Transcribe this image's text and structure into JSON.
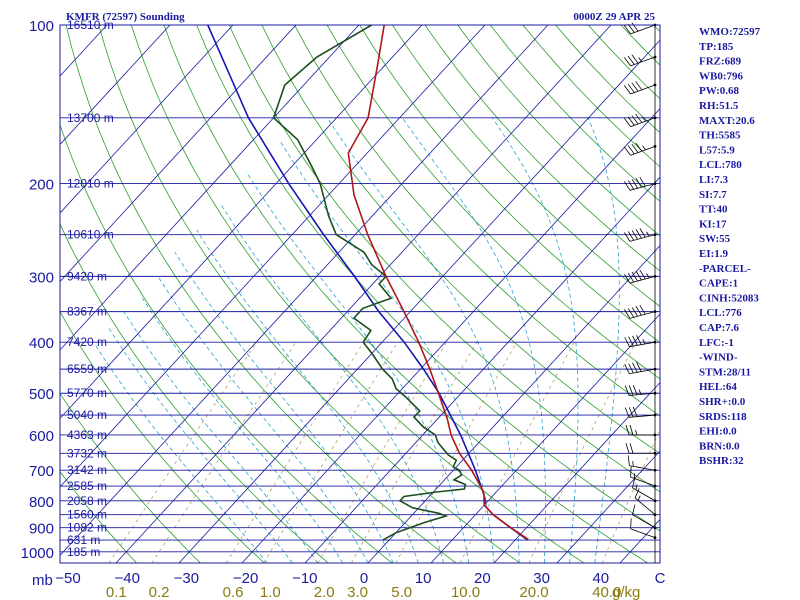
{
  "chart_data": {
    "type": "skew-t",
    "title": "KMFR (72597) Sounding",
    "time": "0000Z 29 APR 25",
    "pressure_axis_label": "mb",
    "pressure_levels": [
      100,
      200,
      300,
      400,
      500,
      600,
      700,
      800,
      900,
      1000
    ],
    "temperature_ticks": [
      "−50",
      "−40",
      "−30",
      "−20",
      "−10",
      "0",
      "10",
      "20",
      "30",
      "40",
      "C"
    ],
    "mixing_ratio_ticks": [
      {
        "r": 0.1,
        "label": "0.1"
      },
      {
        "r": 0.2,
        "label": "0.2"
      },
      {
        "r": 0.6,
        "label": "0.6"
      },
      {
        "r": 1.0,
        "label": "1.0"
      },
      {
        "r": 2.0,
        "label": "2.0"
      },
      {
        "r": 3.0,
        "label": "3.0"
      },
      {
        "r": 5.0,
        "label": "5.0"
      },
      {
        "r": 10.0,
        "label": "10.0"
      },
      {
        "r": 20.0,
        "label": "20.0"
      },
      {
        "r": 40.0,
        "label": "40.0"
      }
    ],
    "mixing_ratio_unit": "g/kg",
    "heights": [
      {
        "p": 100,
        "label": "16510 m"
      },
      {
        "p": 150,
        "label": "13700 m"
      },
      {
        "p": 200,
        "label": "12010 m"
      },
      {
        "p": 250,
        "label": "10610 m"
      },
      {
        "p": 300,
        "label": "9420 m"
      },
      {
        "p": 350,
        "label": "8367 m"
      },
      {
        "p": 400,
        "label": "7420 m"
      },
      {
        "p": 450,
        "label": "6559 m"
      },
      {
        "p": 500,
        "label": "5770 m"
      },
      {
        "p": 550,
        "label": "5040 m"
      },
      {
        "p": 600,
        "label": "4363 m"
      },
      {
        "p": 650,
        "label": "3732 m"
      },
      {
        "p": 700,
        "label": "3142 m"
      },
      {
        "p": 750,
        "label": "2585 m"
      },
      {
        "p": 800,
        "label": "2058 m"
      },
      {
        "p": 850,
        "label": "1560 m"
      },
      {
        "p": 900,
        "label": "1082 m"
      },
      {
        "p": 950,
        "label": "631 m"
      },
      {
        "p": 1000,
        "label": "185 m"
      }
    ],
    "temperature_profile": [
      {
        "p": 947,
        "t": 22.0
      },
      {
        "p": 900,
        "t": 17.5
      },
      {
        "p": 850,
        "t": 12.8
      },
      {
        "p": 815,
        "t": 10.0
      },
      {
        "p": 800,
        "t": 9.6
      },
      {
        "p": 760,
        "t": 7.3
      },
      {
        "p": 700,
        "t": 2.9
      },
      {
        "p": 650,
        "t": -1.5
      },
      {
        "p": 600,
        "t": -5.5
      },
      {
        "p": 560,
        "t": -8.4
      },
      {
        "p": 500,
        "t": -13.6
      },
      {
        "p": 450,
        "t": -18.5
      },
      {
        "p": 400,
        "t": -24.2
      },
      {
        "p": 350,
        "t": -31.0
      },
      {
        "p": 300,
        "t": -39.0
      },
      {
        "p": 250,
        "t": -48.0
      },
      {
        "p": 210,
        "t": -56.0
      },
      {
        "p": 175,
        "t": -63.0
      },
      {
        "p": 150,
        "t": -65.0
      },
      {
        "p": 120,
        "t": -71.0
      },
      {
        "p": 100,
        "t": -76.0
      }
    ],
    "dewpoint_profile": [
      {
        "p": 950,
        "t": -1.0
      },
      {
        "p": 920,
        "t": 0.0
      },
      {
        "p": 900,
        "t": 1.5
      },
      {
        "p": 880,
        "t": 3.0
      },
      {
        "p": 855,
        "t": 5.5
      },
      {
        "p": 845,
        "t": 4.0
      },
      {
        "p": 825,
        "t": -1.0
      },
      {
        "p": 800,
        "t": -4.0
      },
      {
        "p": 785,
        "t": -4.0
      },
      {
        "p": 770,
        "t": 0.5
      },
      {
        "p": 760,
        "t": 4.5
      },
      {
        "p": 745,
        "t": 4.0
      },
      {
        "p": 730,
        "t": 1.5
      },
      {
        "p": 715,
        "t": 2.0
      },
      {
        "p": 700,
        "t": 1.0
      },
      {
        "p": 690,
        "t": -0.5
      },
      {
        "p": 670,
        "t": -1.0
      },
      {
        "p": 655,
        "t": -3.0
      },
      {
        "p": 640,
        "t": -4.5
      },
      {
        "p": 620,
        "t": -6.5
      },
      {
        "p": 600,
        "t": -8.0
      },
      {
        "p": 580,
        "t": -11.0
      },
      {
        "p": 555,
        "t": -14.0
      },
      {
        "p": 540,
        "t": -14.0
      },
      {
        "p": 510,
        "t": -18.0
      },
      {
        "p": 490,
        "t": -21.0
      },
      {
        "p": 470,
        "t": -23.0
      },
      {
        "p": 450,
        "t": -26.0
      },
      {
        "p": 420,
        "t": -30.0
      },
      {
        "p": 400,
        "t": -33.0
      },
      {
        "p": 380,
        "t": -33.5
      },
      {
        "p": 360,
        "t": -38.0
      },
      {
        "p": 345,
        "t": -38.0
      },
      {
        "p": 330,
        "t": -35.0
      },
      {
        "p": 310,
        "t": -39.0
      },
      {
        "p": 300,
        "t": -39.0
      },
      {
        "p": 285,
        "t": -43.0
      },
      {
        "p": 270,
        "t": -46.0
      },
      {
        "p": 250,
        "t": -53.0
      },
      {
        "p": 230,
        "t": -57.0
      },
      {
        "p": 200,
        "t": -63.0
      },
      {
        "p": 185,
        "t": -67.0
      },
      {
        "p": 165,
        "t": -73.0
      },
      {
        "p": 150,
        "t": -80.0
      },
      {
        "p": 130,
        "t": -83.0
      },
      {
        "p": 115,
        "t": -82.0
      },
      {
        "p": 100,
        "t": -78.0
      }
    ],
    "parcel_path": [
      {
        "p": 950,
        "t": 22.0
      },
      {
        "p": 900,
        "t": 17.5
      },
      {
        "p": 850,
        "t": 12.8
      },
      {
        "p": 815,
        "t": 10.0
      },
      {
        "p": 780,
        "t": 8.5
      },
      {
        "p": 700,
        "t": 3.5
      },
      {
        "p": 600,
        "t": -4.0
      },
      {
        "p": 500,
        "t": -13.5
      },
      {
        "p": 450,
        "t": -19.5
      },
      {
        "p": 400,
        "t": -26.5
      },
      {
        "p": 350,
        "t": -35.0
      },
      {
        "p": 300,
        "t": -44.0
      },
      {
        "p": 250,
        "t": -55.0
      },
      {
        "p": 200,
        "t": -68.0
      },
      {
        "p": 150,
        "t": -84.0
      },
      {
        "p": 100,
        "t": -104.0
      }
    ],
    "wind_barbs": [
      {
        "p": 940,
        "spd": 10,
        "dir": 290
      },
      {
        "p": 900,
        "spd": 12,
        "dir": 300
      },
      {
        "p": 850,
        "spd": 15,
        "dir": 310
      },
      {
        "p": 800,
        "spd": 15,
        "dir": 300
      },
      {
        "p": 750,
        "spd": 15,
        "dir": 290
      },
      {
        "p": 700,
        "spd": 15,
        "dir": 280
      },
      {
        "p": 650,
        "spd": 20,
        "dir": 270
      },
      {
        "p": 600,
        "spd": 25,
        "dir": 270
      },
      {
        "p": 550,
        "spd": 30,
        "dir": 265
      },
      {
        "p": 500,
        "spd": 35,
        "dir": 265
      },
      {
        "p": 450,
        "spd": 40,
        "dir": 260
      },
      {
        "p": 400,
        "spd": 45,
        "dir": 260
      },
      {
        "p": 350,
        "spd": 50,
        "dir": 255
      },
      {
        "p": 300,
        "spd": 55,
        "dir": 255
      },
      {
        "p": 250,
        "spd": 55,
        "dir": 255
      },
      {
        "p": 200,
        "spd": 50,
        "dir": 255
      },
      {
        "p": 170,
        "spd": 45,
        "dir": 250
      },
      {
        "p": 150,
        "spd": 45,
        "dir": 250
      },
      {
        "p": 130,
        "spd": 40,
        "dir": 250
      },
      {
        "p": 115,
        "spd": 35,
        "dir": 250
      },
      {
        "p": 100,
        "spd": 30,
        "dir": 250
      }
    ],
    "indices": [
      "WMO:72597",
      "TP:185",
      "FRZ:689",
      "WB0:796",
      "PW:0.68",
      "RH:51.5",
      "MAXT:20.6",
      "TH:5585",
      "L57:5.9",
      "LCL:780",
      "LI:7.3",
      "SI:7.7",
      "TT:40",
      "KI:17",
      "SW:55",
      "EI:1.9",
      "-PARCEL-",
      "CAPE:1",
      "CINH:52083",
      "LCL:776",
      "CAP:7.6",
      "LFC:-1",
      "-WIND-",
      "STM:28/11",
      "HEL:64",
      "SHR+:0.0",
      "SRDS:118",
      "EHI:0.0",
      "BRN:0.0",
      "BSHR:32"
    ],
    "colors": {
      "background": "#ffffff",
      "frame": "#1a1aa0",
      "isobar": "#1a1aa0",
      "isotherm": "#1a1aa0",
      "dry_adiabat": "#2e9e2e",
      "moist_adiabat": "#2aa0d0",
      "mixing_ratio": "#b0a060",
      "temperature": "#b01818",
      "dewpoint": "#1e4d1e",
      "parcel": "#1818b0",
      "text": "#1a1aa0",
      "mixing_label": "#8a7a10"
    }
  }
}
